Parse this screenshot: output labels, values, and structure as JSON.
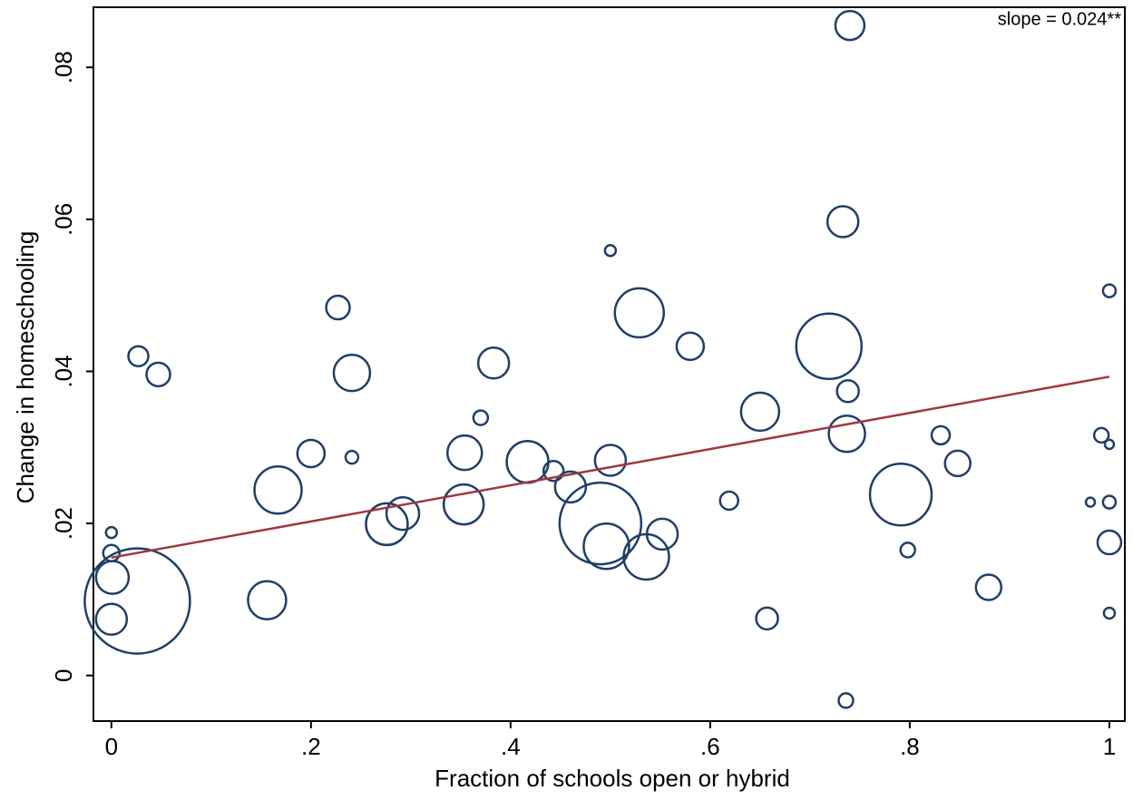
{
  "chart_data": {
    "type": "scatter",
    "xlabel": "Fraction of schools open or hybrid",
    "ylabel": "Change in homeschooling",
    "annotation": "slope = 0.024**",
    "color": "#1f3f66",
    "x": [
      0.026,
      0.001,
      0,
      0,
      0,
      0.027,
      0.047,
      0.156,
      0.167,
      0.2,
      0.227,
      0.241,
      0.241,
      0.276,
      0.292,
      0.353,
      0.354,
      0.37,
      0.383,
      0.417,
      0.443,
      0.46,
      0.49,
      0.496,
      0.5,
      0.5,
      0.529,
      0.536,
      0.552,
      0.58,
      0.619,
      0.65,
      0.657,
      0.719,
      0.733,
      0.74,
      0.738,
      0.737,
      0.736,
      0.791,
      0.798,
      0.831,
      0.848,
      0.879,
      0.992,
      1,
      0.981,
      1,
      1,
      1,
      1
    ],
    "values": [
      0.0098,
      0.0129,
      0.0074,
      0.0161,
      0.0188,
      0.042,
      0.0396,
      0.0099,
      0.0244,
      0.0292,
      0.0484,
      0.0398,
      0.0287,
      0.0199,
      0.0213,
      0.0225,
      0.0293,
      0.0339,
      0.0411,
      0.0281,
      0.0269,
      0.0248,
      0.02,
      0.017,
      0.0283,
      0.0559,
      0.0477,
      0.0156,
      0.0186,
      0.0433,
      0.023,
      0.0347,
      0.0075,
      0.0433,
      0.0597,
      0.0855,
      0.0374,
      0.0318,
      -0.0033,
      0.0238,
      0.0165,
      0.0316,
      0.0279,
      0.0116,
      0.0316,
      0.0304,
      0.0228,
      0.0228,
      0.0506,
      0.0175,
      0.0082
    ],
    "sizes": [
      3364,
      324,
      289,
      81,
      36,
      121,
      169,
      441,
      676,
      225,
      169,
      400,
      49,
      529,
      324,
      484,
      361,
      64,
      289,
      529,
      121,
      289,
      2025,
      625,
      289,
      36,
      729,
      625,
      289,
      225,
      100,
      441,
      144,
      1296,
      289,
      256,
      144,
      400,
      64,
      1156,
      64,
      100,
      196,
      196,
      64,
      25,
      25,
      49,
      49,
      169,
      36
    ],
    "fit_line": {
      "x": [
        0,
        1
      ],
      "values": [
        0.0155,
        0.0393
      ],
      "color": "#9b3a3f"
    },
    "xlim": [
      -0.018,
      1.0155
    ],
    "ylim": [
      -0.006,
      0.0879
    ],
    "xticks": [
      0,
      {
        "value": 0.2,
        "label": ".2"
      },
      {
        "value": 0.4,
        "label": ".4"
      },
      {
        "value": 0.6,
        "label": ".6"
      },
      {
        "value": 0.8,
        "label": ".8"
      },
      1
    ],
    "yticks": [
      0,
      {
        "value": 0.02,
        "label": ".02"
      },
      {
        "value": 0.04,
        "label": ".04"
      },
      {
        "value": 0.06,
        "label": ".06"
      },
      {
        "value": 0.08,
        "label": ".08"
      }
    ]
  }
}
